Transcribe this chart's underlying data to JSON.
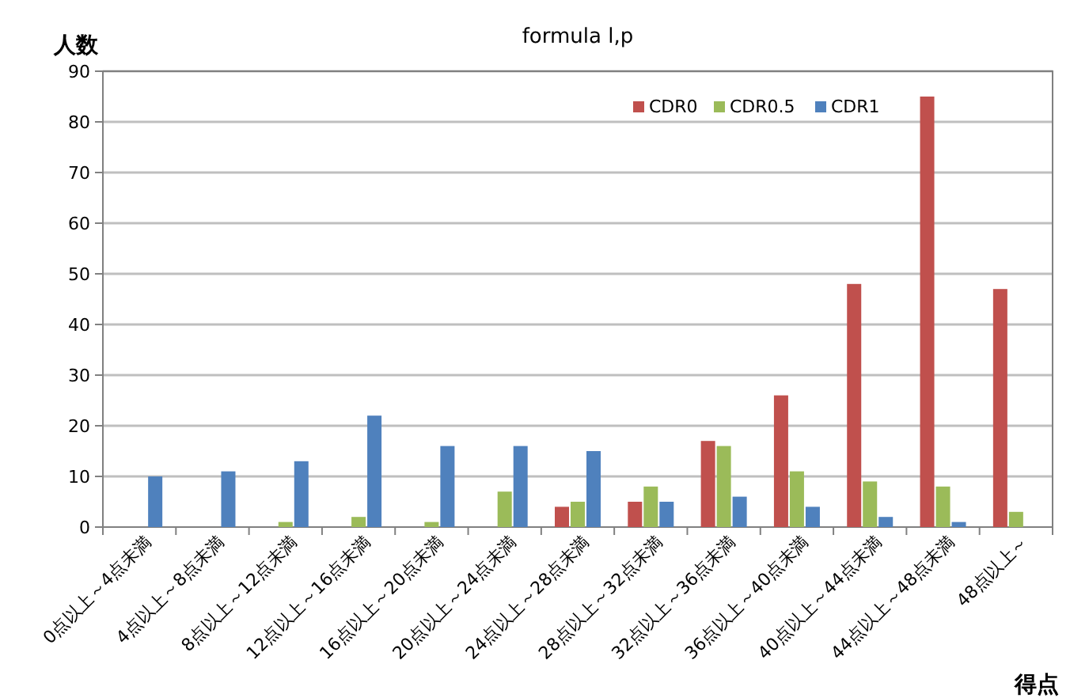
{
  "chart_data": {
    "type": "bar",
    "title": "formula l,p",
    "ylabel": "人数",
    "xlabel": "得点",
    "categories": [
      "0点以上～4点未満",
      "4点以上～8点未満",
      "8点以上～12点未満",
      "12点以上～16点未満",
      "16点以上～20点未満",
      "20点以上～24点未満",
      "24点以上～28点未満",
      "28点以上～32点未満",
      "32点以上～36点未満",
      "36点以上～40点未満",
      "40点以上～44点未満",
      "44点以上～48点未満",
      "48点以上～"
    ],
    "series": [
      {
        "name": "CDR0",
        "color": "#c0504d",
        "values": [
          0,
          0,
          0,
          0,
          0,
          0,
          4,
          5,
          17,
          26,
          48,
          85,
          47
        ]
      },
      {
        "name": "CDR0.5",
        "color": "#9bbb59",
        "values": [
          0,
          0,
          1,
          2,
          1,
          7,
          5,
          8,
          16,
          11,
          9,
          8,
          3
        ]
      },
      {
        "name": "CDR1",
        "color": "#4f81bd",
        "values": [
          10,
          11,
          13,
          22,
          16,
          16,
          15,
          5,
          6,
          4,
          2,
          1,
          0
        ]
      }
    ],
    "ylim": [
      0,
      90
    ],
    "yticks": [
      0,
      10,
      20,
      30,
      40,
      50,
      60,
      70,
      80,
      90
    ],
    "grid": "y",
    "legend": "top right"
  }
}
